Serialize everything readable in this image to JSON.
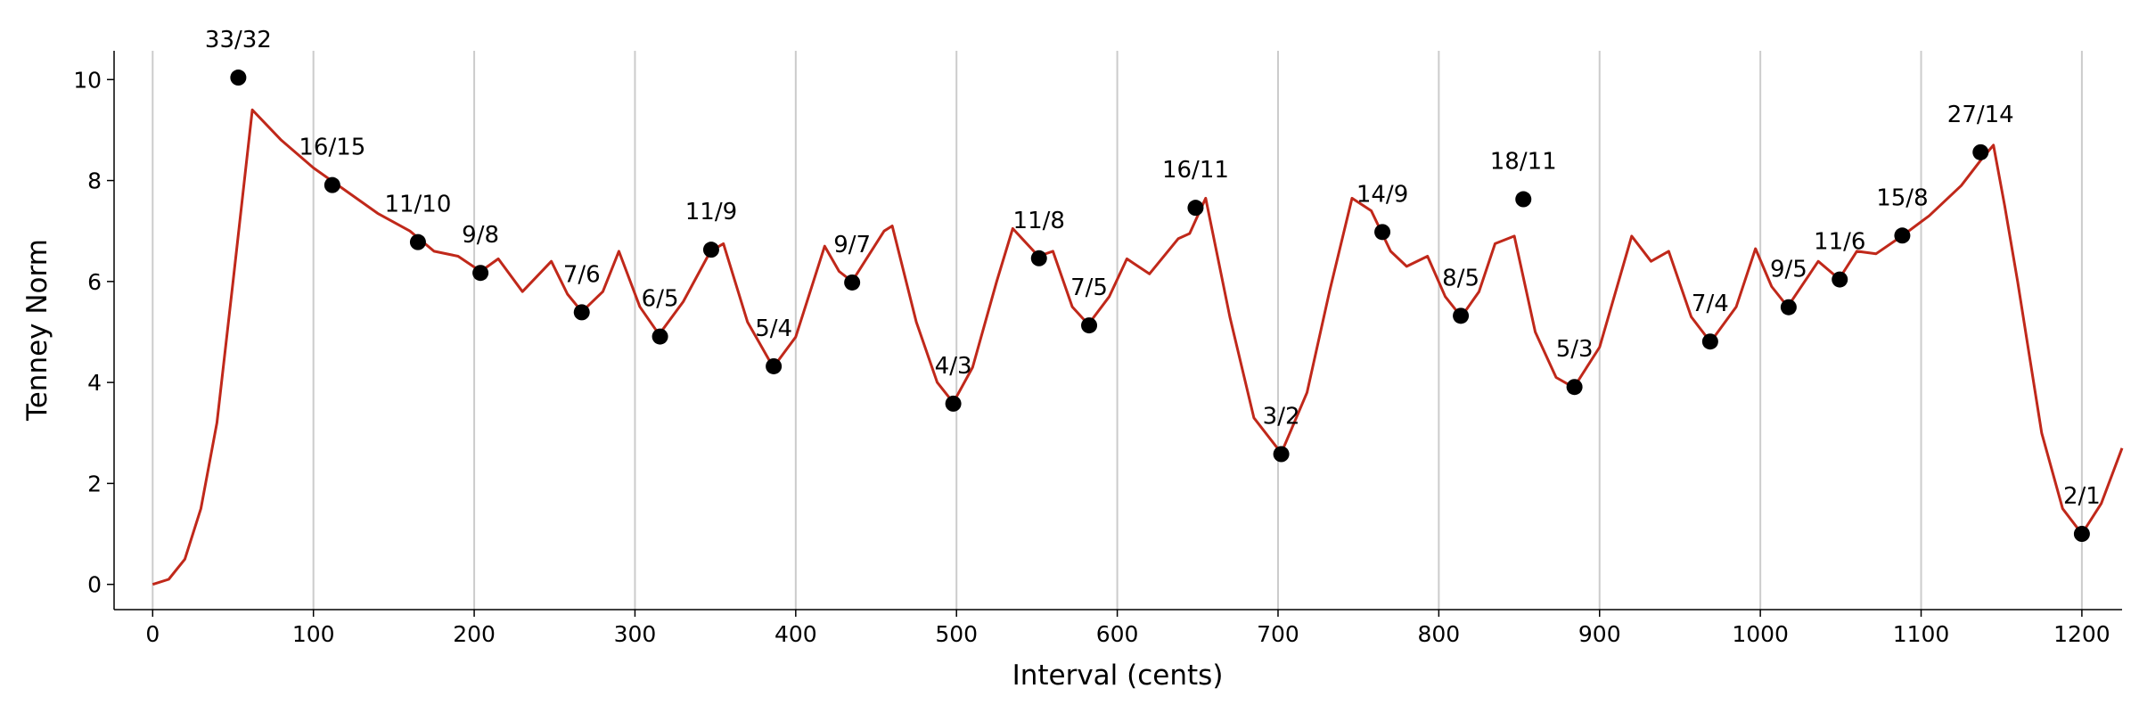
{
  "chart_data": {
    "type": "line",
    "xlabel": "Interval (cents)",
    "ylabel": "Tenney Norm",
    "xlim": [
      -24,
      1225
    ],
    "ylim": [
      -0.5,
      10.57
    ],
    "xticks": [
      0,
      100,
      200,
      300,
      400,
      500,
      600,
      700,
      800,
      900,
      1000,
      1100,
      1200
    ],
    "yticks": [
      0,
      2,
      4,
      6,
      8,
      10
    ],
    "grid": "x",
    "line": {
      "color": "#c0281a",
      "x": [
        0,
        10,
        20,
        30,
        40,
        50,
        62,
        80,
        100,
        120,
        140,
        160,
        175,
        190,
        204,
        215,
        230,
        248,
        258,
        267,
        280,
        290,
        303,
        315,
        330,
        347,
        355,
        370,
        386,
        400,
        418,
        427,
        435,
        455,
        460,
        475,
        488,
        498,
        510,
        525,
        535,
        551,
        560,
        572,
        582,
        595,
        606,
        620,
        638,
        645,
        655,
        670,
        685,
        702,
        718,
        732,
        746,
        758,
        770,
        780,
        793,
        804,
        814,
        825,
        835,
        847,
        860,
        873,
        884,
        900,
        920,
        932,
        943,
        957,
        969,
        985,
        997,
        1007,
        1017,
        1036,
        1049,
        1060,
        1072,
        1088,
        1105,
        1125,
        1137,
        1145,
        1152,
        1160,
        1168,
        1175,
        1188,
        1200,
        1212,
        1225
      ],
      "values": [
        0,
        0.1,
        0.5,
        1.5,
        3.2,
        6,
        9.4,
        8.8,
        8.25,
        7.8,
        7.35,
        7.0,
        6.6,
        6.5,
        6.2,
        6.45,
        5.8,
        6.4,
        5.75,
        5.4,
        5.8,
        6.6,
        5.5,
        4.95,
        5.6,
        6.6,
        6.75,
        5.2,
        4.3,
        4.9,
        6.7,
        6.2,
        6.0,
        7.0,
        7.1,
        5.2,
        4.0,
        3.6,
        4.3,
        6.0,
        7.05,
        6.5,
        6.6,
        5.5,
        5.15,
        5.7,
        6.45,
        6.15,
        6.85,
        6.95,
        7.65,
        5.3,
        3.3,
        2.6,
        3.8,
        5.8,
        7.65,
        7.4,
        6.6,
        6.3,
        6.5,
        5.7,
        5.3,
        5.8,
        6.75,
        6.9,
        5.0,
        4.1,
        3.9,
        4.7,
        6.9,
        6.4,
        6.6,
        5.3,
        4.8,
        5.5,
        6.65,
        5.9,
        5.5,
        6.4,
        6.05,
        6.6,
        6.55,
        6.9,
        7.3,
        7.9,
        8.4,
        8.7,
        7.5,
        6.0,
        4.4,
        3.0,
        1.5,
        1.0,
        1.6,
        2.7
      ]
    },
    "points": {
      "color": "#000000",
      "x": [
        53.27,
        111.73,
        165.0,
        203.9,
        266.9,
        315.6,
        347.4,
        386.3,
        435.1,
        498.0,
        551.3,
        582.5,
        648.7,
        702.0,
        764.9,
        813.7,
        852.6,
        884.4,
        968.8,
        1017.6,
        1049.4,
        1088.3,
        1137.0,
        1200
      ],
      "values": [
        10.04,
        7.91,
        6.78,
        6.17,
        5.39,
        4.91,
        6.63,
        4.32,
        5.98,
        3.58,
        6.46,
        5.13,
        7.46,
        2.58,
        6.98,
        5.32,
        7.63,
        3.91,
        4.81,
        5.49,
        6.04,
        6.91,
        8.56,
        1.0
      ],
      "labels": [
        "33/32",
        "16/15",
        "11/10",
        "9/8",
        "7/6",
        "6/5",
        "11/9",
        "5/4",
        "9/7",
        "4/3",
        "11/8",
        "7/5",
        "16/11",
        "3/2",
        "14/9",
        "8/5",
        "18/11",
        "5/3",
        "7/4",
        "9/5",
        "11/6",
        "15/8",
        "27/14",
        "2/1"
      ]
    }
  }
}
